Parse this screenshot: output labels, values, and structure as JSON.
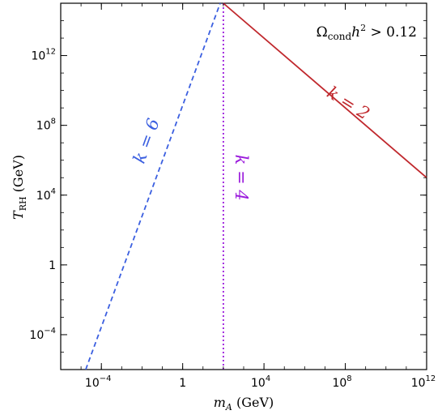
{
  "chart_data": {
    "type": "line",
    "title": "",
    "xlabel": "m_A (GeV)",
    "ylabel": "T_RH (GeV)",
    "x_scale": "log",
    "y_scale": "log",
    "xlim": [
      1e-06,
      1000000000000.0
    ],
    "ylim": [
      1e-06,
      1000000000000000.0
    ],
    "grid": false,
    "xticks": [
      {
        "value": 0.0001,
        "base": "10",
        "exp": "−4"
      },
      {
        "value": 1,
        "base": "1",
        "exp": ""
      },
      {
        "value": 10000.0,
        "base": "10",
        "exp": "4"
      },
      {
        "value": 100000000.0,
        "base": "10",
        "exp": "8"
      },
      {
        "value": 1000000000000.0,
        "base": "10",
        "exp": "12"
      }
    ],
    "yticks": [
      {
        "value": 0.0001,
        "base": "10",
        "exp": "−4"
      },
      {
        "value": 1,
        "base": "1",
        "exp": ""
      },
      {
        "value": 10000.0,
        "base": "10",
        "exp": "4"
      },
      {
        "value": 100000000.0,
        "base": "10",
        "exp": "8"
      },
      {
        "value": 1000000000000.0,
        "base": "10",
        "exp": "12"
      }
    ],
    "series": [
      {
        "name": "k = 6",
        "color": "#3b5fe0",
        "dash": "dashed",
        "points": [
          [
            1.7e-05,
            1e-06
          ],
          [
            70,
            1000000000000000.0
          ]
        ]
      },
      {
        "name": "k = 4",
        "color": "#9b1bdc",
        "dash": "dotted",
        "points": [
          [
            100,
            1e-06
          ],
          [
            100,
            1000000000000000.0
          ]
        ]
      },
      {
        "name": "k = 2",
        "color": "#c0282d",
        "dash": "solid",
        "points": [
          [
            100,
            1000000000000000.0
          ],
          [
            1000000000000.0,
            100000.0
          ]
        ]
      }
    ],
    "annotations": [
      {
        "key": "k6",
        "text": "k = 6",
        "color": "#3b5fe0",
        "x": 0.03,
        "y": 10000000.0,
        "rotate": -70
      },
      {
        "key": "k4",
        "text": "k = 4",
        "color": "#9b1bdc",
        "x": 400,
        "y": 100000.0,
        "rotate": 90
      },
      {
        "key": "k2",
        "text": "k = 2",
        "color": "#c0282d",
        "x": 100000000.0,
        "y": 1000000000.0,
        "rotate": 32
      }
    ],
    "condition_label": "Ω_cond h² > 0.12"
  }
}
